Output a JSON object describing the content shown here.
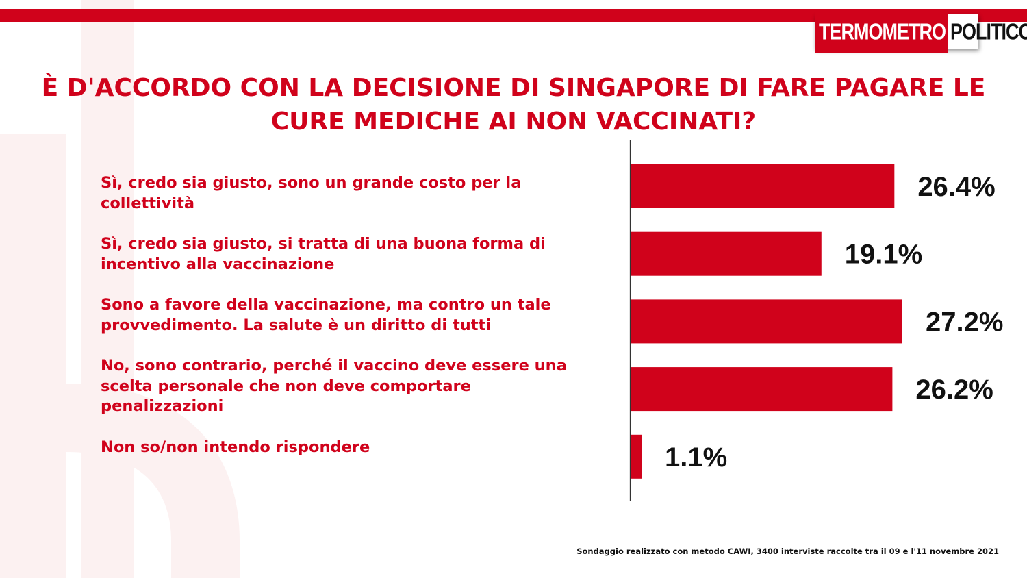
{
  "brand": {
    "logo_part1": "TERMOMETRO",
    "logo_part2": "POLITICO",
    "accent_color": "#d0021b",
    "text_color": "#111111"
  },
  "chart_data": {
    "type": "bar",
    "orientation": "horizontal",
    "title": "È D'ACCORDO CON LA DECISIONE DI SINGAPORE DI FARE PAGARE LE CURE MEDICHE AI NON VACCINATI?",
    "categories": [
      "Sì, credo sia giusto, sono un grande costo per la collettività",
      "Sì, credo sia giusto, si tratta di una buona forma di incentivo alla vaccinazione",
      "Sono a favore della vaccinazione, ma contro un tale provvedimento. La salute è un diritto di tutti",
      "No, sono contrario, perché il vaccino deve essere una scelta personale che non deve comportare penalizzazioni",
      "Non so/non intendo rispondere"
    ],
    "values": [
      26.4,
      19.1,
      27.2,
      26.2,
      1.1
    ],
    "value_labels": [
      "26.4%",
      "19.1%",
      "27.2%",
      "26.2%",
      "1.1%"
    ],
    "unit": "%",
    "xlim": [
      0,
      27.2
    ],
    "bar_color": "#d0021b",
    "grid": false,
    "legend": "none"
  },
  "footnote": "Sondaggio realizzato con metodo CAWI, 3400 interviste raccolte tra il 09 e l'11 novembre 2021"
}
